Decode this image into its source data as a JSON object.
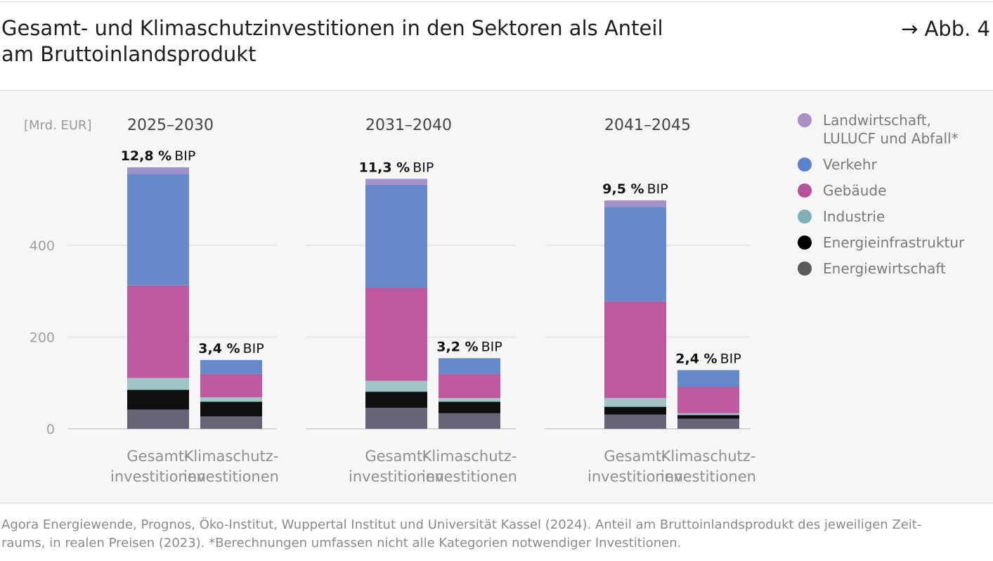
{
  "title": {
    "line1": "Gesamt- und Klimaschutzinvestitionen in den Sektoren als Anteil",
    "line2": "am Bruttoinlandsprodukt"
  },
  "figure_ref": "→ Abb. 4",
  "footer": {
    "line1": "Agora Energiewende, Prognos, Öko-Institut, Wuppertal Institut und Universität Kassel (2024). Anteil am Bruttoinlandsprodukt des jeweiligen Zeit-",
    "line2": "raums, in realen Preisen (2023). *Berechnungen umfassen nicht alle Kategorien notwendiger Investitionen."
  },
  "colors": {
    "Landwirtschaft": "#a193c9",
    "Verkehr": "#6589cb",
    "Gebäude": "#bd5a9f",
    "Industrie": "#9ec4c3",
    "Energieinfrastruktur": "#0f0f12",
    "Energiewirtschaft": "#676575"
  },
  "legend": [
    {
      "key": "Landwirtschaft",
      "lines": [
        "Landwirtschaft,",
        "LULUCF und Abfall*"
      ],
      "color": "#a98fc3"
    },
    {
      "key": "Verkehr",
      "lines": [
        "Verkehr"
      ],
      "color": "#5c82c9"
    },
    {
      "key": "Gebäude",
      "lines": [
        "Gebäude"
      ],
      "color": "#b84f9a"
    },
    {
      "key": "Industrie",
      "lines": [
        "Industrie"
      ],
      "color": "#7fb0b5"
    },
    {
      "key": "Energieinfrastruktur",
      "lines": [
        "Energieinfrastruktur"
      ],
      "color": "#000000"
    },
    {
      "key": "Energiewirtschaft",
      "lines": [
        "Energiewirtschaft"
      ],
      "color": "#5a5a5a"
    }
  ],
  "chart_data": {
    "type": "bar",
    "stacked": true,
    "unit_label": "[Mrd. EUR]",
    "ylim": [
      0,
      600
    ],
    "yticks": [
      0,
      200,
      400
    ],
    "grid": true,
    "legend_position": "right",
    "stack_order": [
      "Energiewirtschaft",
      "Energieinfrastruktur",
      "Industrie",
      "Gebäude",
      "Verkehr",
      "Landwirtschaft"
    ],
    "groups": [
      {
        "period": "2025–2030",
        "bars": [
          {
            "label": [
              "Gesamt-",
              "investitionen"
            ],
            "bip_value": "12,8 %",
            "bip_suffix": "BIP",
            "values": {
              "Energiewirtschaft": 42,
              "Energieinfrastruktur": 43,
              "Industrie": 26,
              "Gebäude": 202,
              "Verkehr": 243,
              "Landwirtschaft": 14
            }
          },
          {
            "label": [
              "Klimaschutz-",
              "investitionen"
            ],
            "bip_value": "3,4 %",
            "bip_suffix": "BIP",
            "values": {
              "Energiewirtschaft": 27,
              "Energieinfrastruktur": 32,
              "Industrie": 10,
              "Gebäude": 51,
              "Verkehr": 30,
              "Landwirtschaft": 0
            }
          }
        ]
      },
      {
        "period": "2031–2040",
        "bars": [
          {
            "label": [
              "Gesamt-",
              "investitionen"
            ],
            "bip_value": "11,3 %",
            "bip_suffix": "BIP",
            "values": {
              "Energiewirtschaft": 46,
              "Energieinfrastruktur": 35,
              "Industrie": 24,
              "Gebäude": 203,
              "Verkehr": 224,
              "Landwirtschaft": 13
            }
          },
          {
            "label": [
              "Klimaschutz-",
              "investitionen"
            ],
            "bip_value": "3,2 %",
            "bip_suffix": "BIP",
            "values": {
              "Energiewirtschaft": 34,
              "Energieinfrastruktur": 25,
              "Industrie": 8,
              "Gebäude": 53,
              "Verkehr": 34,
              "Landwirtschaft": 0
            }
          }
        ]
      },
      {
        "period": "2041–2045",
        "bars": [
          {
            "label": [
              "Gesamt-",
              "investitionen"
            ],
            "bip_value": "9,5 %",
            "bip_suffix": "BIP",
            "values": {
              "Energiewirtschaft": 31,
              "Energieinfrastruktur": 17,
              "Industrie": 19,
              "Gebäude": 211,
              "Verkehr": 206,
              "Landwirtschaft": 14
            }
          },
          {
            "label": [
              "Klimaschutz-",
              "investitionen"
            ],
            "bip_value": "2,4 %",
            "bip_suffix": "BIP",
            "values": {
              "Energiewirtschaft": 22,
              "Energieinfrastruktur": 8,
              "Industrie": 4,
              "Gebäude": 58,
              "Verkehr": 36,
              "Landwirtschaft": 0
            }
          }
        ]
      }
    ]
  }
}
